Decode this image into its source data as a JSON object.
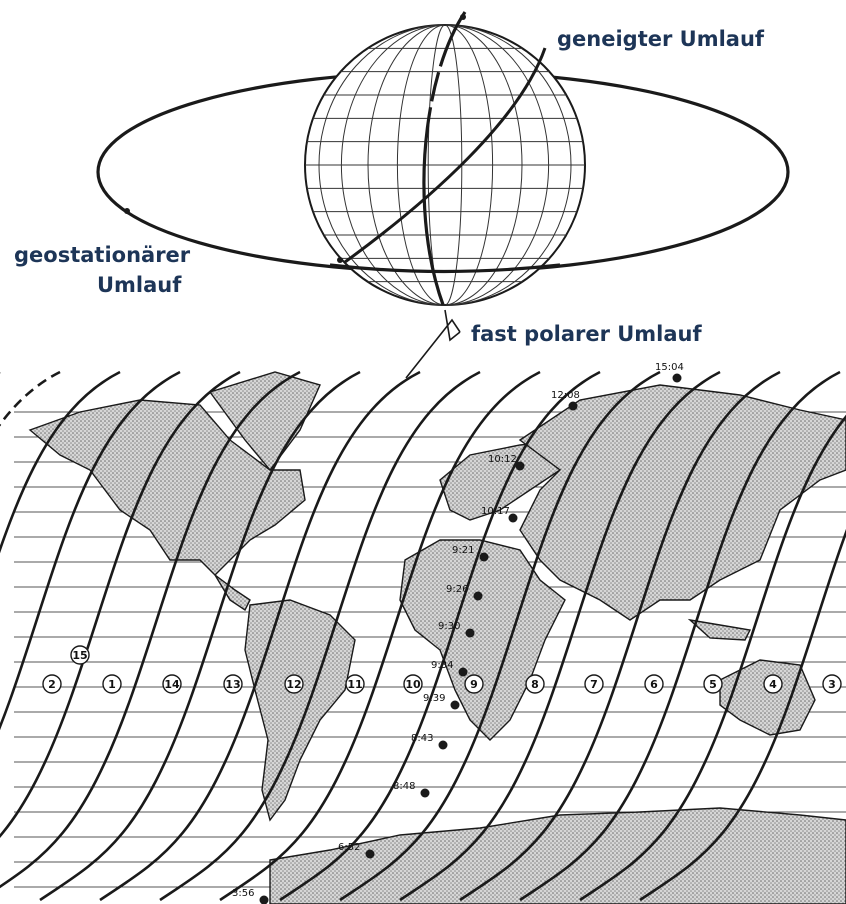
{
  "labels": {
    "inclined": "geneigter Umlauf",
    "geo_line1": "geostationärer",
    "geo_line2": "Umlauf",
    "polar": "fast polarer Umlauf"
  },
  "orbit_numbers": [
    "15",
    "2",
    "1",
    "14",
    "13",
    "12",
    "11",
    "10",
    "9",
    "8",
    "7",
    "6",
    "5",
    "4",
    "3"
  ],
  "pass_times": [
    "15:04",
    "12:08",
    "10:12",
    "10:17",
    "9:21",
    "9:26",
    "9:30",
    "9:34",
    "9:39",
    "8:43",
    "8:48",
    "6:52",
    "3:56"
  ],
  "colors": {
    "ink": "#1a1a1a",
    "label": "#1d3557",
    "land": "#b9b9b9"
  }
}
